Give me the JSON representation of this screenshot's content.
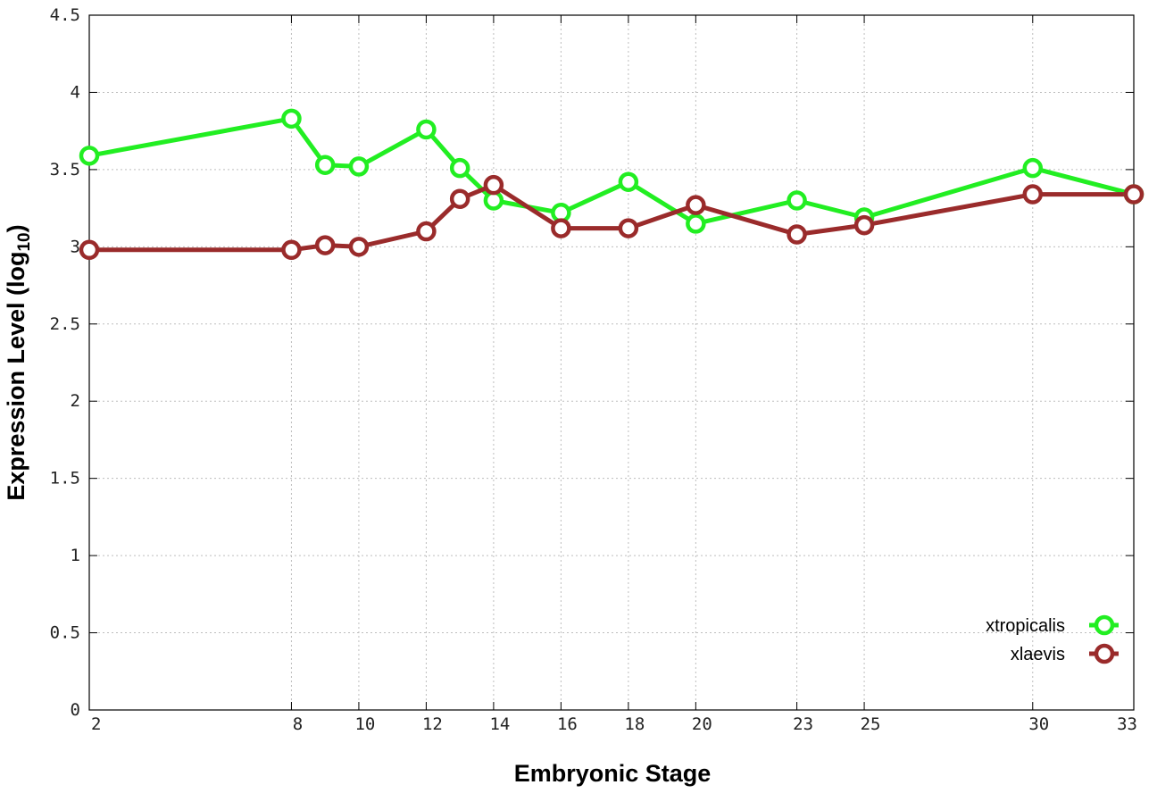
{
  "chart_data": {
    "type": "line",
    "xlabel": "Embryonic Stage",
    "ylabel_main": "Expression Level (log",
    "ylabel_sub": "10",
    "ylabel_close": ")",
    "ylim": [
      0,
      4.5
    ],
    "grid": true,
    "legend_position": "bottom-right",
    "categories": [
      "2",
      "8",
      "9",
      "10",
      "12",
      "13",
      "14",
      "16",
      "18",
      "20",
      "23",
      "25",
      "30",
      "33"
    ],
    "x_tick_labels": [
      "2",
      "8",
      "10",
      "12",
      "14",
      "16",
      "18",
      "20",
      "23",
      "25",
      "30",
      "33"
    ],
    "y_tick_labels": [
      "0",
      "0.5",
      "1",
      "1.5",
      "2",
      "2.5",
      "3",
      "3.5",
      "4",
      "4.5"
    ],
    "series": [
      {
        "name": "xtropicalis",
        "color": "#22ee22",
        "values": [
          3.59,
          3.83,
          3.53,
          3.52,
          3.76,
          3.51,
          3.3,
          3.22,
          3.42,
          3.15,
          3.3,
          3.19,
          3.51,
          3.34
        ]
      },
      {
        "name": "xlaevis",
        "color": "#9a2b2b",
        "values": [
          2.98,
          2.98,
          3.01,
          3.0,
          3.1,
          3.31,
          3.4,
          3.12,
          3.12,
          3.27,
          3.08,
          3.14,
          3.34,
          3.34
        ]
      }
    ]
  }
}
